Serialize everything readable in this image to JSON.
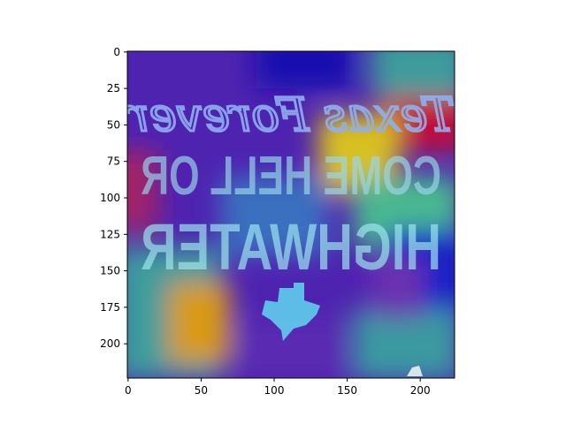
{
  "chart_data": {
    "type": "heatmap",
    "title": "",
    "xlabel": "",
    "ylabel": "",
    "xlim": [
      0,
      224
    ],
    "ylim": [
      224,
      0
    ],
    "xticks": [
      0,
      50,
      100,
      150,
      200
    ],
    "yticks": [
      0,
      25,
      50,
      75,
      100,
      125,
      150,
      175,
      200
    ],
    "colormap": "jet",
    "overlay": "saliency heatmap over a mirrored text image",
    "image_text": {
      "line1": "Texas Forever",
      "line2": "COME HELL OR",
      "line3": "HIGHWATER"
    }
  },
  "colors": {
    "deep_blue": "#1c0aa8",
    "purple": "#5a2db3",
    "teal": "#3aa0a0",
    "orange": "#d9a010",
    "red": "#c0103a",
    "cyan_text": "#7fe0e8"
  }
}
